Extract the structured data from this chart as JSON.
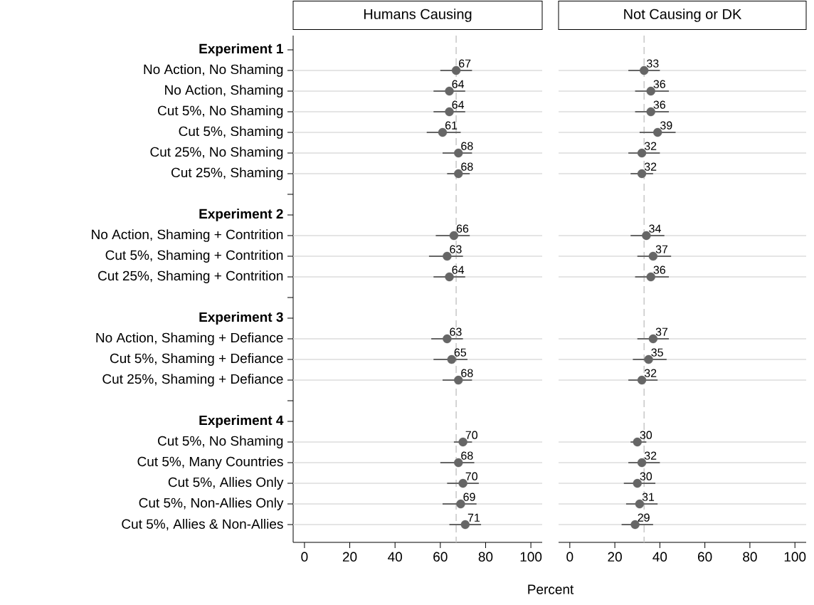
{
  "chart_data": [
    {
      "type": "scatter",
      "orientation": "horizontal",
      "title": "Humans Causing",
      "xlabel": "Percent",
      "categories": [
        "**Experiment 1**",
        "No Action, No Shaming",
        "No Action, Shaming",
        "Cut 5%, No Shaming",
        "Cut 5%, Shaming",
        "Cut 25%, No Shaming",
        "Cut 25%, Shaming",
        null,
        "**Experiment 2**",
        "No Action, Shaming + Contrition",
        "Cut 5%, Shaming + Contrition",
        "Cut 25%, Shaming + Contrition",
        null,
        "**Experiment 3**",
        "No Action, Shaming + Defiance",
        "Cut 5%, Shaming + Defiance",
        "Cut 25%, Shaming + Defiance",
        null,
        "**Experiment 4**",
        "Cut 5%, No Shaming",
        "Cut 5%, Many Countries",
        "Cut 5%, Allies Only",
        "Cut 5%, Non-Allies Only",
        "Cut 5%, Allies & Non-Allies"
      ],
      "values": [
        null,
        67,
        64,
        64,
        61,
        68,
        68,
        null,
        null,
        66,
        63,
        64,
        null,
        null,
        63,
        65,
        68,
        null,
        null,
        70,
        68,
        70,
        69,
        71
      ],
      "errors": [
        null,
        [
          60,
          74
        ],
        [
          57,
          71
        ],
        [
          57,
          71
        ],
        [
          54,
          69
        ],
        [
          61,
          74
        ],
        [
          63,
          73
        ],
        null,
        null,
        [
          58,
          73
        ],
        [
          55,
          70
        ],
        [
          57,
          71
        ],
        null,
        null,
        [
          56,
          70
        ],
        [
          57,
          72
        ],
        [
          61,
          74
        ],
        null,
        null,
        [
          66,
          74
        ],
        [
          60,
          75
        ],
        [
          63,
          77
        ],
        [
          61,
          76
        ],
        [
          64,
          78
        ]
      ],
      "color": "#666666",
      "marker": "circle",
      "grid": "y",
      "data_labels": true,
      "xlim": [
        -5,
        105
      ],
      "xticks": [
        0,
        20,
        40,
        60,
        80,
        100
      ],
      "ref_lines": [
        {
          "axis": "x",
          "value": 67,
          "color": "#c8c8c8",
          "line_style": "dashed"
        }
      ]
    },
    {
      "type": "scatter",
      "orientation": "horizontal",
      "title": "Not Causing or DK",
      "tick_labels": "x",
      "categories": [
        null,
        null,
        null,
        null,
        null,
        null,
        null,
        null,
        null,
        null,
        null,
        null,
        null,
        null,
        null,
        null,
        null,
        null,
        null,
        null,
        null,
        null,
        null,
        null
      ],
      "values": [
        null,
        33,
        36,
        36,
        39,
        32,
        32,
        null,
        null,
        34,
        37,
        36,
        null,
        null,
        37,
        35,
        32,
        null,
        null,
        30,
        32,
        30,
        31,
        29
      ],
      "errors": [
        null,
        [
          26,
          40
        ],
        [
          29,
          44
        ],
        [
          29,
          44
        ],
        [
          31,
          47
        ],
        [
          26,
          40
        ],
        [
          27,
          37
        ],
        null,
        null,
        [
          27,
          42
        ],
        [
          30,
          45
        ],
        [
          29,
          44
        ],
        null,
        null,
        [
          30,
          44
        ],
        [
          28,
          43
        ],
        [
          26,
          39
        ],
        null,
        null,
        [
          27,
          34
        ],
        [
          26,
          40
        ],
        [
          24,
          38
        ],
        [
          25,
          39
        ],
        [
          23,
          37
        ]
      ],
      "color": "#666666",
      "marker": "circle",
      "grid": "y",
      "data_labels": true,
      "xlim": [
        -5,
        105
      ],
      "xticks": [
        0,
        20,
        40,
        60,
        80,
        100
      ],
      "ref_lines": [
        {
          "axis": "x",
          "value": 33,
          "color": "#c8c8c8",
          "line_style": "dashed"
        }
      ]
    }
  ]
}
